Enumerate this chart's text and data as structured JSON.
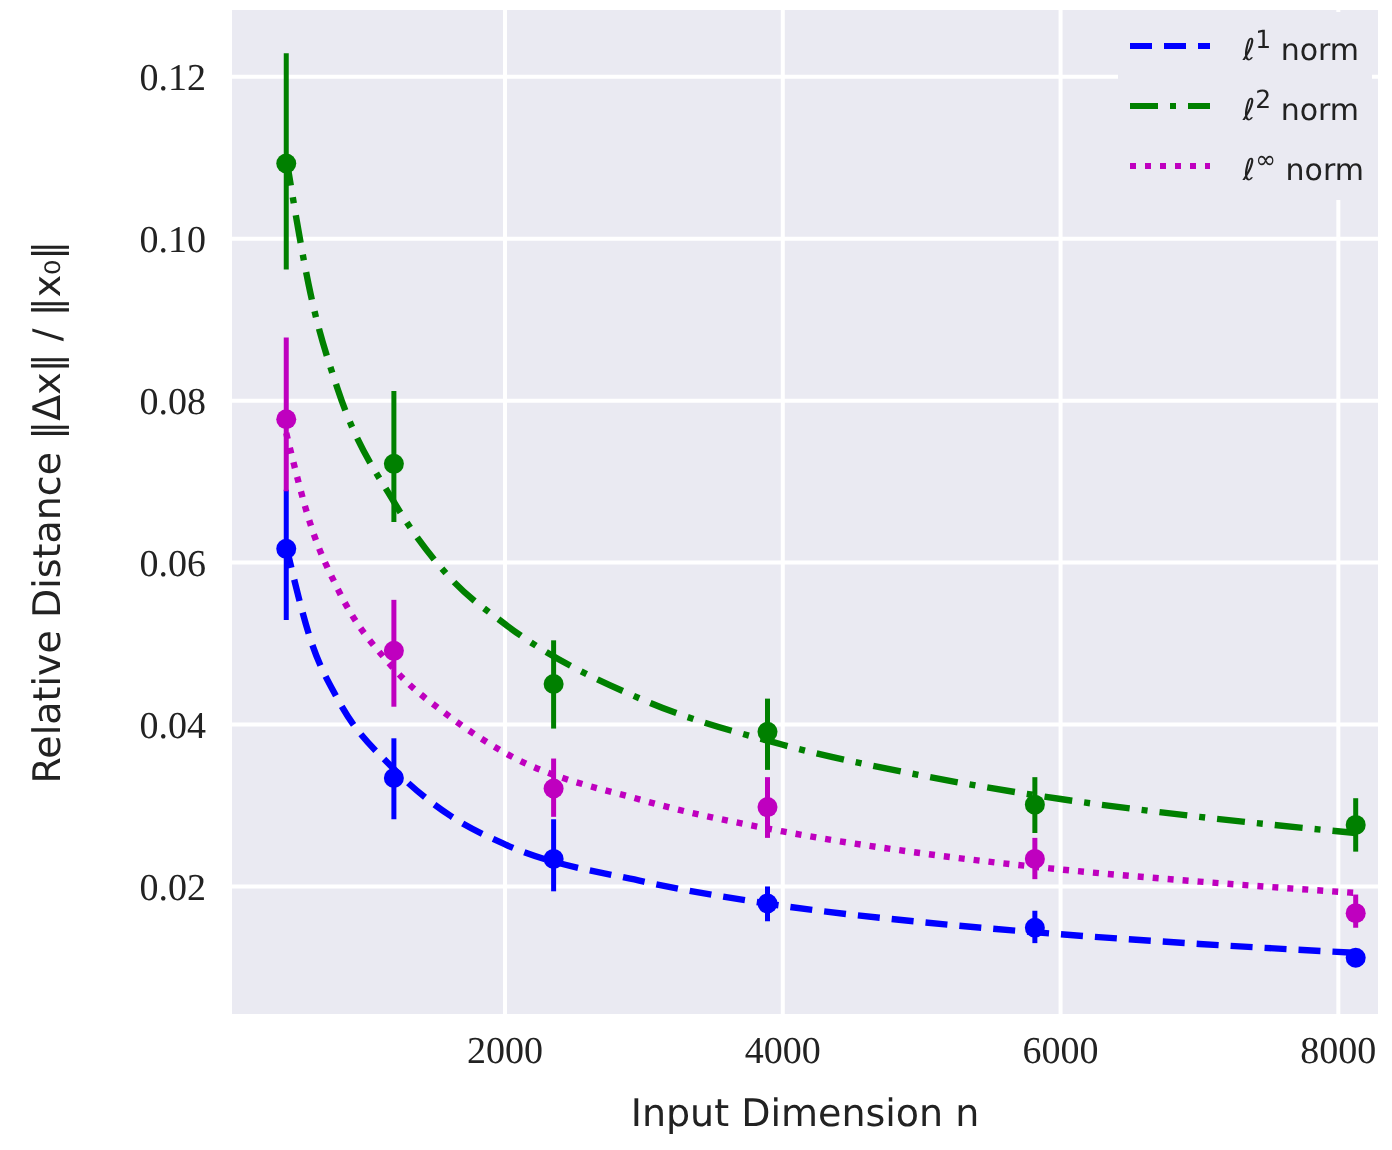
{
  "chart_data": {
    "type": "scatter",
    "xlabel": "Input Dimension n",
    "ylabel": "Relative Distance ‖Δx‖ / ‖x₀‖",
    "xlim": [
      20,
      8300
    ],
    "ylim": [
      0.004,
      0.1285
    ],
    "xticks": [
      2000,
      4000,
      6000,
      8000
    ],
    "yticks": [
      0.02,
      0.04,
      0.06,
      0.08,
      {
        "value": 0.1,
        "label": "0.10"
      },
      0.12
    ],
    "grid": true,
    "legend": "top right",
    "marker": "circle",
    "series": [
      {
        "color": "#0000ff",
        "x": [
          425,
          1200,
          2350,
          3890,
          5815,
          8125
        ],
        "values": [
          0.0617,
          0.0334,
          0.0234,
          0.0179,
          0.0149,
          0.0112
        ],
        "errors": [
          [
            0.0529,
            0.069
          ],
          [
            0.0283,
            0.0383
          ],
          [
            0.0194,
            0.0283
          ],
          [
            0.0157,
            0.02
          ],
          [
            0.013,
            0.017
          ],
          [
            0.0102,
            0.0122
          ]
        ]
      },
      {
        "color": "#008000",
        "x": [
          425,
          1200,
          2350,
          3890,
          5815,
          8125
        ],
        "values": [
          0.1093,
          0.0722,
          0.045,
          0.0391,
          0.0301,
          0.0276
        ],
        "errors": [
          [
            0.0962,
            0.1229
          ],
          [
            0.065,
            0.0812
          ],
          [
            0.0395,
            0.0504
          ],
          [
            0.0344,
            0.0432
          ],
          [
            0.0266,
            0.0335
          ],
          [
            0.0243,
            0.0309
          ]
        ]
      },
      {
        "color": "#bf00bf",
        "x": [
          425,
          1200,
          2350,
          3890,
          5815,
          8125
        ],
        "values": [
          0.0777,
          0.0491,
          0.0321,
          0.0298,
          0.0234,
          0.0167
        ],
        "errors": [
          [
            0.0688,
            0.0878
          ],
          [
            0.0422,
            0.0554
          ],
          [
            0.0286,
            0.0358
          ],
          [
            0.026,
            0.0335
          ],
          [
            0.0209,
            0.026
          ],
          [
            0.0149,
            0.019
          ]
        ]
      },
      {
        "type": "line",
        "name": "ℓ$^{1}$ norm",
        "color": "#0000ff",
        "line_style": "dashed",
        "marker": "none",
        "x": [
          425,
          600,
          800,
          1200,
          1600,
          2000,
          3000,
          4000,
          5000,
          6000,
          7000,
          8125
        ],
        "values": [
          0.062,
          0.0505,
          0.043,
          0.0345,
          0.0288,
          0.0252,
          0.0206,
          0.0176,
          0.0156,
          0.0141,
          0.0129,
          0.0118
        ]
      },
      {
        "type": "line",
        "name": "ℓ$^{2}$ norm",
        "color": "#008000",
        "line_style": "dashdot",
        "marker": "none",
        "x": [
          425,
          600,
          800,
          1200,
          1600,
          2000,
          3000,
          4000,
          5000,
          6000,
          7000,
          8125
        ],
        "values": [
          0.11,
          0.0932,
          0.0812,
          0.0675,
          0.0582,
          0.0524,
          0.043,
          0.0375,
          0.0337,
          0.0308,
          0.0286,
          0.0266
        ]
      },
      {
        "type": "line",
        "name": "ℓ$^{∞}$ norm",
        "color": "#bf00bf",
        "line_style": "dotted",
        "marker": "none",
        "x": [
          425,
          600,
          800,
          1200,
          1600,
          2000,
          3000,
          4000,
          5000,
          6000,
          7000,
          8125
        ],
        "values": [
          0.076,
          0.0647,
          0.0566,
          0.0469,
          0.041,
          0.0365,
          0.0306,
          0.0268,
          0.0241,
          0.0221,
          0.0206,
          0.0192
        ]
      }
    ]
  }
}
